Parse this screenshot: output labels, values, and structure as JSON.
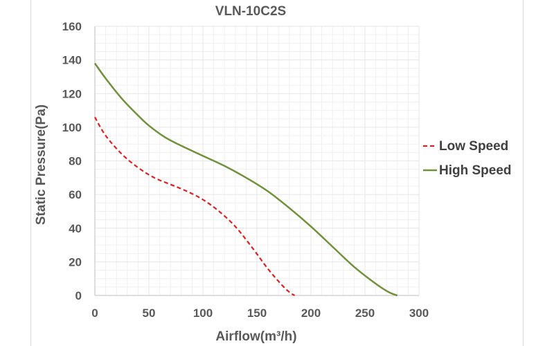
{
  "chart_data": {
    "type": "line",
    "title": "VLN-10C2S",
    "xlabel": "Airflow(m³/h)",
    "ylabel": "Static Pressure(Pa)",
    "xlim": [
      0,
      300
    ],
    "ylim": [
      0,
      160
    ],
    "xticks": [
      0,
      50,
      100,
      150,
      200,
      250,
      300
    ],
    "yticks": [
      0,
      20,
      40,
      60,
      80,
      100,
      120,
      140,
      160
    ],
    "grid": true,
    "legend_position": "right",
    "series": [
      {
        "name": "Low Speed",
        "color": "#e02020",
        "style": "dashed",
        "x": [
          0,
          10,
          25,
          40,
          55,
          70,
          85,
          100,
          115,
          130,
          145,
          160,
          172,
          180,
          185
        ],
        "y": [
          106,
          95,
          84,
          76,
          70,
          66,
          62,
          57,
          50,
          41,
          29,
          16,
          7,
          2,
          0
        ]
      },
      {
        "name": "High Speed",
        "color": "#70913a",
        "style": "solid",
        "x": [
          0,
          10,
          25,
          40,
          50,
          65,
          80,
          100,
          120,
          140,
          160,
          180,
          200,
          220,
          240,
          260,
          272,
          280
        ],
        "y": [
          138,
          129,
          117,
          107,
          101,
          94,
          89,
          83,
          77,
          70,
          62,
          52,
          41,
          29,
          17,
          7,
          2,
          0
        ]
      }
    ]
  }
}
